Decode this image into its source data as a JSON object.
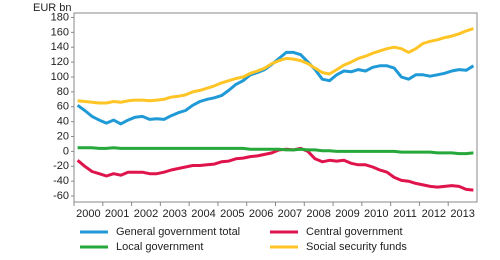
{
  "chart_data": {
    "type": "line",
    "y_label": "EUR bn",
    "categories": [
      "2000",
      null,
      null,
      null,
      "2001",
      null,
      null,
      null,
      "2002",
      null,
      null,
      null,
      "2003",
      null,
      null,
      null,
      "2004",
      null,
      null,
      null,
      "2005",
      null,
      null,
      null,
      "2006",
      null,
      null,
      null,
      "2007",
      null,
      null,
      null,
      "2008",
      null,
      null,
      null,
      "2009",
      null,
      null,
      null,
      "2010",
      null,
      null,
      null,
      "2011",
      null,
      null,
      null,
      "2012",
      null,
      null,
      null,
      "2013",
      null,
      null,
      null
    ],
    "series": [
      {
        "name": "General government total",
        "color": "#1f9ad6",
        "values": [
          62,
          55,
          47,
          42,
          38,
          42,
          37,
          42,
          46,
          47,
          43,
          44,
          43,
          48,
          52,
          55,
          62,
          67,
          70,
          72,
          75,
          82,
          90,
          95,
          103,
          106,
          110,
          117,
          125,
          133,
          133,
          130,
          120,
          110,
          97,
          95,
          103,
          108,
          107,
          110,
          108,
          113,
          115,
          115,
          112,
          100,
          97,
          103,
          103,
          101,
          103,
          105,
          108,
          110,
          109,
          115
        ]
      },
      {
        "name": "Central government",
        "color": "#e0144c",
        "values": [
          -12,
          -20,
          -27,
          -30,
          -33,
          -30,
          -32,
          -28,
          -28,
          -28,
          -30,
          -30,
          -28,
          -25,
          -23,
          -21,
          -19,
          -19,
          -18,
          -17,
          -14,
          -13,
          -10,
          -9,
          -7,
          -6,
          -4,
          -2,
          2,
          3,
          2,
          4,
          0,
          -10,
          -14,
          -12,
          -13,
          -12,
          -16,
          -18,
          -18,
          -21,
          -25,
          -28,
          -35,
          -39,
          -40,
          -43,
          -45,
          -47,
          -48,
          -47,
          -46,
          -47,
          -51,
          -52
        ]
      },
      {
        "name": "Local government",
        "color": "#26a83a",
        "values": [
          5,
          5,
          5,
          4,
          4,
          5,
          4,
          4,
          4,
          4,
          4,
          4,
          4,
          4,
          4,
          4,
          4,
          4,
          4,
          4,
          4,
          4,
          4,
          4,
          3,
          3,
          3,
          3,
          3,
          2,
          2,
          3,
          2,
          2,
          1,
          1,
          0,
          0,
          0,
          0,
          0,
          0,
          0,
          0,
          0,
          -1,
          -1,
          -1,
          -1,
          -1,
          -2,
          -2,
          -2,
          -3,
          -3,
          -2
        ]
      },
      {
        "name": "Social security funds",
        "color": "#ffc425",
        "values": [
          68,
          67,
          66,
          65,
          65,
          67,
          66,
          68,
          69,
          69,
          68,
          69,
          70,
          73,
          74,
          76,
          80,
          82,
          85,
          88,
          92,
          95,
          98,
          100,
          105,
          108,
          112,
          118,
          122,
          125,
          124,
          122,
          118,
          112,
          106,
          104,
          110,
          116,
          120,
          125,
          128,
          132,
          135,
          138,
          140,
          138,
          133,
          138,
          145,
          148,
          150,
          153,
          155,
          158,
          162,
          165
        ]
      }
    ],
    "ylim": [
      -68,
      186
    ],
    "yticks": [
      -60,
      -40,
      -20,
      0,
      20,
      40,
      60,
      80,
      100,
      120,
      140,
      160,
      180
    ],
    "grid": false
  }
}
